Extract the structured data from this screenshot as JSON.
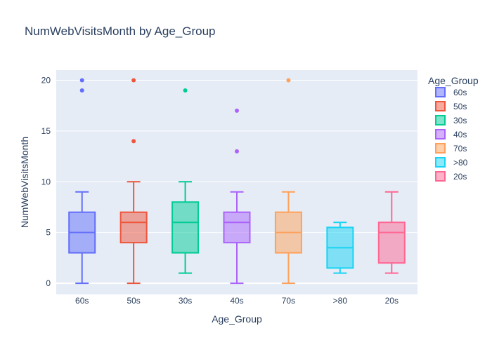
{
  "chart_data": {
    "type": "box",
    "title": "NumWebVisitsMonth by Age_Group",
    "xlabel": "Age_Group",
    "ylabel": "NumWebVisitsMonth",
    "ylim": [
      -1.1,
      21
    ],
    "yticks": [
      0,
      5,
      10,
      15,
      20
    ],
    "legend_title": "Age_Group",
    "legend_placement": "right",
    "grid": true,
    "plot_background": "#e5ecf6",
    "categories": [
      "60s",
      "50s",
      "30s",
      "40s",
      "70s",
      ">80",
      "20s"
    ],
    "series": [
      {
        "name": "60s",
        "color": "#636efa",
        "min": 0,
        "q1": 3,
        "median": 5,
        "q3": 7,
        "max": 9,
        "outliers": [
          19,
          20
        ]
      },
      {
        "name": "50s",
        "color": "#ef553b",
        "min": 0,
        "q1": 4,
        "median": 6,
        "q3": 7,
        "max": 10,
        "outliers": [
          14,
          20
        ]
      },
      {
        "name": "30s",
        "color": "#00cc96",
        "min": 1,
        "q1": 3,
        "median": 6,
        "q3": 8,
        "max": 10,
        "outliers": [
          19
        ]
      },
      {
        "name": "40s",
        "color": "#ab63fa",
        "min": 0,
        "q1": 4,
        "median": 6,
        "q3": 7,
        "max": 9,
        "outliers": [
          13,
          17
        ]
      },
      {
        "name": "70s",
        "color": "#ffa15a",
        "min": 0,
        "q1": 3,
        "median": 5,
        "q3": 7,
        "max": 9,
        "outliers": [
          20
        ]
      },
      {
        "name": ">80",
        "color": "#19d3f3",
        "min": 1,
        "q1": 1.5,
        "median": 3.5,
        "q3": 5.5,
        "max": 6,
        "outliers": []
      },
      {
        "name": "20s",
        "color": "#ff6692",
        "min": 1,
        "q1": 2,
        "median": 5,
        "q3": 6,
        "max": 9,
        "outliers": []
      }
    ]
  }
}
